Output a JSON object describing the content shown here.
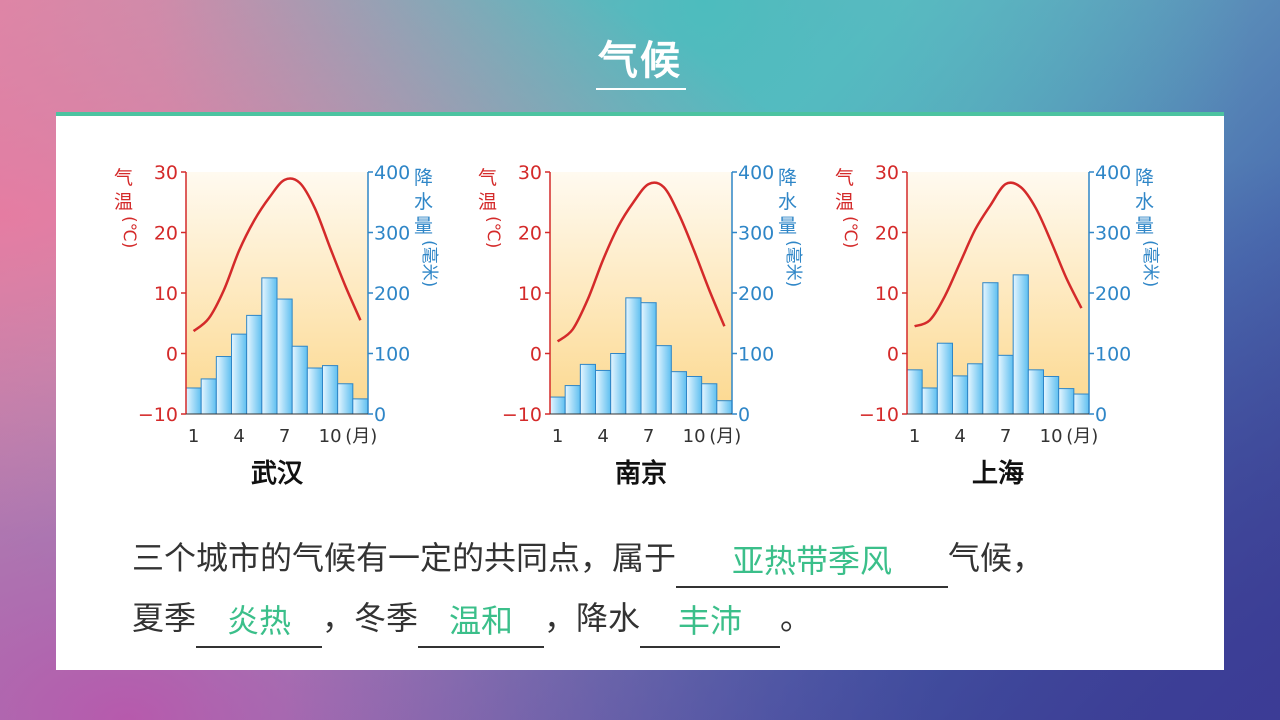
{
  "slide": {
    "title": "气候"
  },
  "colors": {
    "temperature": "#d42a2a",
    "precipitation": "#2f86c7",
    "answer": "#3bbf8a",
    "accent": "#4cc3a0"
  },
  "axes": {
    "temp_label_chars": [
      "气",
      "温",
      "(℃)"
    ],
    "precip_label_chars": [
      "降",
      "水",
      "量",
      "(毫米)"
    ],
    "temp_ticks": [
      "30",
      "20",
      "10",
      "0",
      "−10"
    ],
    "precip_ticks": [
      "400",
      "300",
      "200",
      "100",
      "0"
    ],
    "x_ticks": [
      "1",
      "4",
      "7",
      "10"
    ],
    "x_unit": "(月)"
  },
  "chart_data": [
    {
      "type": "bar",
      "city": "武汉",
      "categories": [
        1,
        2,
        3,
        4,
        5,
        6,
        7,
        8,
        9,
        10,
        11,
        12
      ],
      "series": [
        {
          "values": [
            43,
            58,
            95,
            132,
            163,
            225,
            190,
            112,
            76,
            80,
            50,
            25
          ],
          "axis": "precipitation"
        },
        {
          "values": [
            3.7,
            5.8,
            10.5,
            17.0,
            22.0,
            25.8,
            28.7,
            28.2,
            24.0,
            17.5,
            11.2,
            5.5
          ],
          "axis": "temperature",
          "render": "line"
        }
      ],
      "temp_range": [
        -10,
        30
      ],
      "precip_range": [
        0,
        400
      ]
    },
    {
      "type": "bar",
      "city": "南京",
      "categories": [
        1,
        2,
        3,
        4,
        5,
        6,
        7,
        8,
        9,
        10,
        11,
        12
      ],
      "series": [
        {
          "values": [
            28,
            47,
            82,
            72,
            100,
            192,
            184,
            113,
            70,
            62,
            50,
            22
          ],
          "axis": "precipitation"
        },
        {
          "values": [
            2.0,
            4.0,
            9.0,
            15.5,
            21.0,
            25.0,
            28.0,
            27.5,
            23.0,
            17.0,
            10.5,
            4.5
          ],
          "axis": "temperature",
          "render": "line"
        }
      ],
      "temp_range": [
        -10,
        30
      ],
      "precip_range": [
        0,
        400
      ]
    },
    {
      "type": "bar",
      "city": "上海",
      "categories": [
        1,
        2,
        3,
        4,
        5,
        6,
        7,
        8,
        9,
        10,
        11,
        12
      ],
      "series": [
        {
          "values": [
            73,
            43,
            117,
            63,
            83,
            217,
            97,
            230,
            73,
            62,
            42,
            33
          ],
          "axis": "precipitation"
        },
        {
          "values": [
            4.5,
            5.5,
            9.5,
            15.0,
            20.5,
            24.5,
            28.0,
            27.5,
            24.0,
            18.5,
            12.5,
            7.5
          ],
          "axis": "temperature",
          "render": "line"
        }
      ],
      "temp_range": [
        -10,
        30
      ],
      "precip_range": [
        0,
        400
      ]
    }
  ],
  "question": {
    "part1": "三个城市的气候有一定的共同点，属于",
    "answer1": "亚热带季风",
    "part2": "气候，",
    "part3": "夏季",
    "answer2": "炎热",
    "part4": "，冬季",
    "answer3": "温和",
    "part5": "，降水",
    "answer4": "丰沛",
    "part6": "。"
  }
}
